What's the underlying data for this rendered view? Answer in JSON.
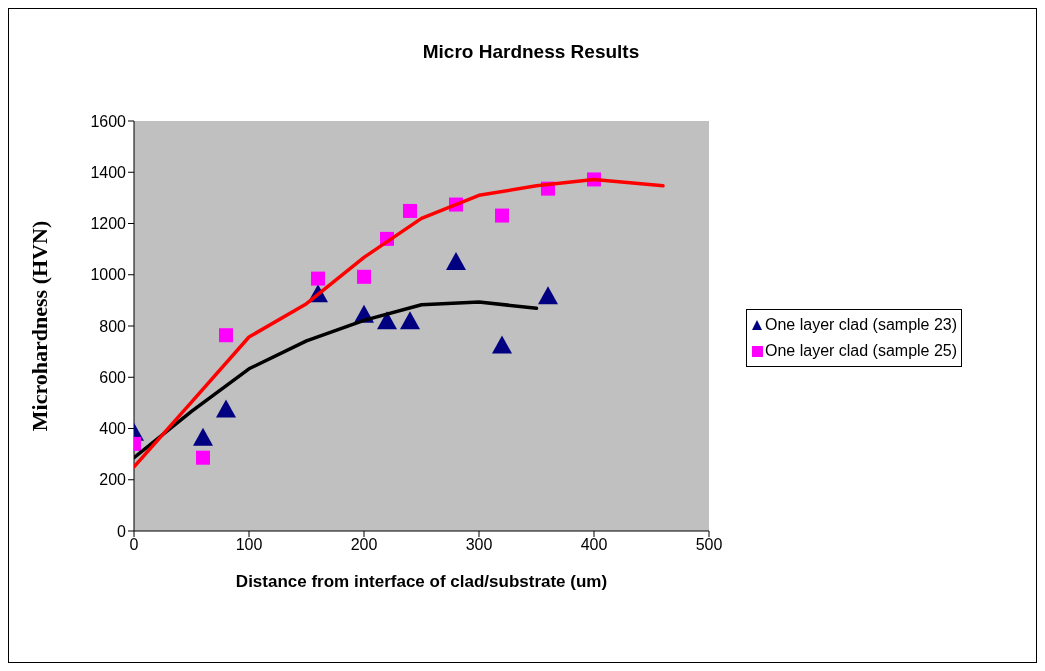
{
  "chart_data": {
    "type": "scatter",
    "title": "Micro Hardness Results",
    "xlabel": "Distance from interface of clad/substrate (um)",
    "ylabel": "Microhardness  (HVN)",
    "xlim": [
      0,
      500
    ],
    "xticks": [
      0,
      100,
      200,
      300,
      400,
      500
    ],
    "ylim": [
      0,
      1600
    ],
    "yticks": [
      0,
      200,
      400,
      600,
      800,
      1000,
      1200,
      1400,
      1600
    ],
    "grid": false,
    "legend": "right",
    "series": [
      {
        "name": "One layer clad (sample 23)",
        "marker": "triangle",
        "color": "#000080",
        "x": [
          0,
          60,
          80,
          160,
          200,
          220,
          240,
          280,
          320,
          360
        ],
        "values": [
          380,
          360,
          470,
          920,
          840,
          815,
          815,
          1046,
          720,
          912
        ]
      },
      {
        "name": "One layer clad (sample 25)",
        "marker": "square",
        "color": "#ff00ff",
        "x": [
          0,
          60,
          80,
          160,
          200,
          220,
          240,
          280,
          320,
          360,
          400
        ],
        "values": [
          340,
          286,
          764,
          985,
          992,
          1140,
          1249,
          1274,
          1231,
          1336,
          1372
        ]
      },
      {
        "type": "line",
        "marker": "none",
        "color": "#000000",
        "x": [
          0,
          50,
          100,
          150,
          200,
          250,
          300,
          350
        ],
        "values": [
          286,
          467,
          633,
          742,
          822,
          883,
          894,
          869
        ]
      },
      {
        "type": "line",
        "marker": "none",
        "color": "#ff0000",
        "x": [
          0,
          50,
          100,
          150,
          200,
          250,
          300,
          350,
          400,
          460
        ],
        "values": [
          250,
          503,
          757,
          887,
          1068,
          1220,
          1310,
          1347,
          1372,
          1347
        ]
      }
    ]
  }
}
